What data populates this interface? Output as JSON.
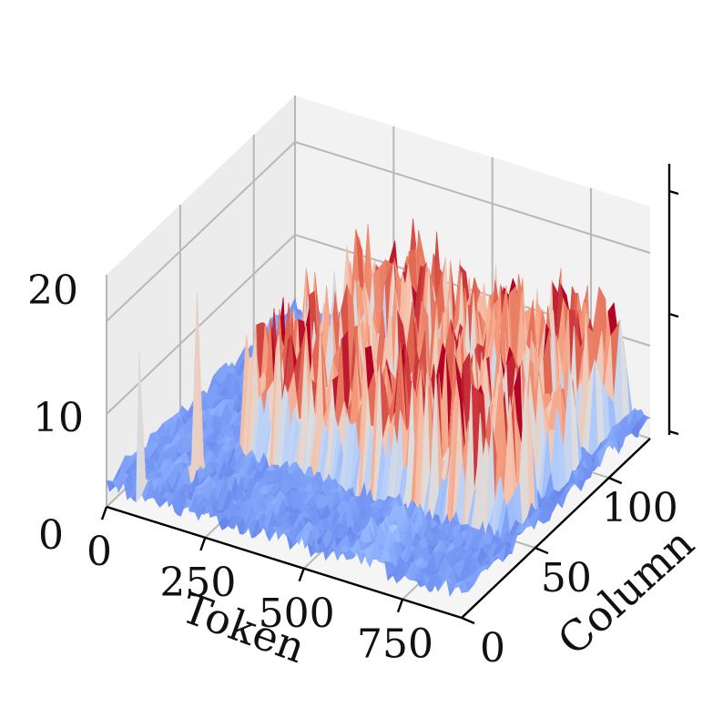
{
  "chart_data": {
    "type": "surface3d",
    "title": "",
    "xlabel": "Token",
    "ylabel": "Column",
    "zlabel": "",
    "x_ticks": [
      "0",
      "250",
      "500",
      "750"
    ],
    "y_ticks": [
      "0",
      "50",
      "100"
    ],
    "z_ticks": [
      "0",
      "10",
      "20"
    ],
    "xlim": [
      0,
      900
    ],
    "ylim": [
      0,
      128
    ],
    "zlim": [
      0,
      25
    ],
    "colormap": "coolwarm",
    "grid": true,
    "description_values": {
      "baseline_mean": 2.5,
      "high_columns": [
        [
          42,
          60,
          9
        ],
        [
          70,
          90,
          8
        ],
        [
          100,
          125,
          8
        ]
      ],
      "isolated_spikes": [
        {
          "token": 80,
          "column": 0,
          "value": 18
        },
        {
          "token": 150,
          "column": 20,
          "value": 22
        }
      ]
    }
  }
}
